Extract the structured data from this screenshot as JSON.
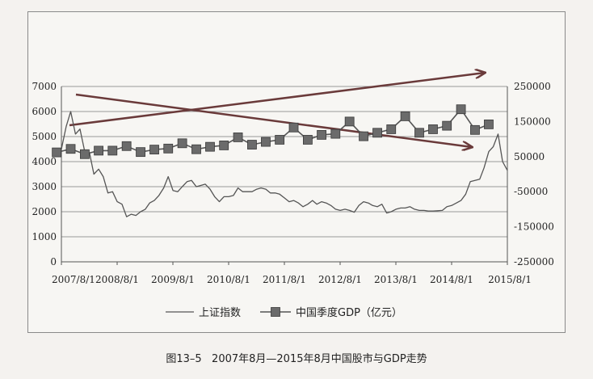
{
  "caption": {
    "number": "图13–5",
    "title": "2007年8月—2015年8月中国股市与GDP走势"
  },
  "chart_data": {
    "type": "line",
    "x_tick_labels": [
      "2007/8/1",
      "2008/8/1",
      "2009/8/1",
      "2010/8/1",
      "2011/8/1",
      "2012/8/1",
      "2013/8/1",
      "2014/8/1",
      "2015/8/1"
    ],
    "y_left": {
      "ticks": [
        "0",
        "1000",
        "2000",
        "3000",
        "4000",
        "5000",
        "6000",
        "7000"
      ],
      "range": [
        0,
        7000
      ]
    },
    "y_right": {
      "ticks": [
        "-250000",
        "-150000",
        "-50000",
        "50000",
        "150000",
        "250000"
      ],
      "range": [
        -250000,
        250000
      ]
    },
    "grid": true,
    "legend_position": "bottom",
    "series": [
      {
        "name": "上证指数",
        "axis": "left",
        "color": "#555555",
        "points": [
          [
            "2007-08-01",
            4500
          ],
          [
            "2007-09-01",
            5400
          ],
          [
            "2007-10-01",
            6000
          ],
          [
            "2007-11-01",
            5100
          ],
          [
            "2007-12-01",
            5300
          ],
          [
            "2008-01-01",
            4400
          ],
          [
            "2008-02-01",
            4350
          ],
          [
            "2008-03-01",
            3500
          ],
          [
            "2008-04-01",
            3700
          ],
          [
            "2008-05-01",
            3400
          ],
          [
            "2008-06-01",
            2750
          ],
          [
            "2008-07-01",
            2800
          ],
          [
            "2008-08-01",
            2400
          ],
          [
            "2008-09-01",
            2300
          ],
          [
            "2008-10-01",
            1800
          ],
          [
            "2008-11-01",
            1900
          ],
          [
            "2008-12-01",
            1850
          ],
          [
            "2009-01-01",
            2000
          ],
          [
            "2009-02-01",
            2100
          ],
          [
            "2009-03-01",
            2350
          ],
          [
            "2009-04-01",
            2450
          ],
          [
            "2009-05-01",
            2650
          ],
          [
            "2009-06-01",
            2950
          ],
          [
            "2009-07-01",
            3400
          ],
          [
            "2009-08-01",
            2850
          ],
          [
            "2009-09-01",
            2800
          ],
          [
            "2009-10-01",
            3000
          ],
          [
            "2009-11-01",
            3200
          ],
          [
            "2009-12-01",
            3250
          ],
          [
            "2010-01-01",
            3000
          ],
          [
            "2010-02-01",
            3050
          ],
          [
            "2010-03-01",
            3100
          ],
          [
            "2010-04-01",
            2900
          ],
          [
            "2010-05-01",
            2600
          ],
          [
            "2010-06-01",
            2400
          ],
          [
            "2010-07-01",
            2600
          ],
          [
            "2010-08-01",
            2600
          ],
          [
            "2010-09-01",
            2650
          ],
          [
            "2010-10-01",
            2950
          ],
          [
            "2010-11-01",
            2800
          ],
          [
            "2010-12-01",
            2800
          ],
          [
            "2011-01-01",
            2800
          ],
          [
            "2011-02-01",
            2900
          ],
          [
            "2011-03-01",
            2950
          ],
          [
            "2011-04-01",
            2900
          ],
          [
            "2011-05-01",
            2750
          ],
          [
            "2011-06-01",
            2750
          ],
          [
            "2011-07-01",
            2700
          ],
          [
            "2011-08-01",
            2550
          ],
          [
            "2011-09-01",
            2400
          ],
          [
            "2011-10-01",
            2450
          ],
          [
            "2011-11-01",
            2350
          ],
          [
            "2011-12-01",
            2200
          ],
          [
            "2012-01-01",
            2300
          ],
          [
            "2012-02-01",
            2450
          ],
          [
            "2012-03-01",
            2300
          ],
          [
            "2012-04-01",
            2400
          ],
          [
            "2012-05-01",
            2350
          ],
          [
            "2012-06-01",
            2250
          ],
          [
            "2012-07-01",
            2100
          ],
          [
            "2012-08-01",
            2050
          ],
          [
            "2012-09-01",
            2100
          ],
          [
            "2012-10-01",
            2050
          ],
          [
            "2012-11-01",
            1980
          ],
          [
            "2012-12-01",
            2250
          ],
          [
            "2013-01-01",
            2400
          ],
          [
            "2013-02-01",
            2350
          ],
          [
            "2013-03-01",
            2250
          ],
          [
            "2013-04-01",
            2200
          ],
          [
            "2013-05-01",
            2300
          ],
          [
            "2013-06-01",
            1950
          ],
          [
            "2013-07-01",
            2000
          ],
          [
            "2013-08-01",
            2100
          ],
          [
            "2013-09-01",
            2150
          ],
          [
            "2013-10-01",
            2150
          ],
          [
            "2013-11-01",
            2200
          ],
          [
            "2013-12-01",
            2100
          ],
          [
            "2014-01-01",
            2050
          ],
          [
            "2014-02-01",
            2050
          ],
          [
            "2014-03-01",
            2030
          ],
          [
            "2014-04-01",
            2030
          ],
          [
            "2014-05-01",
            2040
          ],
          [
            "2014-06-01",
            2050
          ],
          [
            "2014-07-01",
            2200
          ],
          [
            "2014-08-01",
            2250
          ],
          [
            "2014-09-01",
            2350
          ],
          [
            "2014-10-01",
            2450
          ],
          [
            "2014-11-01",
            2700
          ],
          [
            "2014-12-01",
            3200
          ],
          [
            "2015-01-01",
            3250
          ],
          [
            "2015-02-01",
            3300
          ],
          [
            "2015-03-01",
            3750
          ],
          [
            "2015-04-01",
            4400
          ],
          [
            "2015-05-01",
            4600
          ],
          [
            "2015-06-01",
            5100
          ],
          [
            "2015-07-01",
            4000
          ],
          [
            "2015-08-01",
            3650
          ]
        ]
      },
      {
        "name": "中国季度GDP（亿元）",
        "axis": "right",
        "color": "#555555",
        "marker": "square",
        "points": [
          [
            "2007-07-01",
            62000
          ],
          [
            "2007-10-01",
            72000
          ],
          [
            "2008-01-01",
            57000
          ],
          [
            "2008-04-01",
            67000
          ],
          [
            "2008-07-01",
            67000
          ],
          [
            "2008-10-01",
            80000
          ],
          [
            "2009-01-01",
            63000
          ],
          [
            "2009-04-01",
            70000
          ],
          [
            "2009-07-01",
            73000
          ],
          [
            "2009-10-01",
            88000
          ],
          [
            "2010-01-01",
            71000
          ],
          [
            "2010-04-01",
            78000
          ],
          [
            "2010-07-01",
            82000
          ],
          [
            "2010-10-01",
            105000
          ],
          [
            "2011-01-01",
            84000
          ],
          [
            "2011-04-01",
            92000
          ],
          [
            "2011-07-01",
            98000
          ],
          [
            "2011-10-01",
            133000
          ],
          [
            "2012-01-01",
            98000
          ],
          [
            "2012-04-01",
            112000
          ],
          [
            "2012-07-01",
            115000
          ],
          [
            "2012-10-01",
            150000
          ],
          [
            "2013-01-01",
            108000
          ],
          [
            "2013-04-01",
            118000
          ],
          [
            "2013-07-01",
            128000
          ],
          [
            "2013-10-01",
            165000
          ],
          [
            "2014-01-01",
            118000
          ],
          [
            "2014-04-01",
            128000
          ],
          [
            "2014-07-01",
            138000
          ],
          [
            "2014-10-01",
            185000
          ],
          [
            "2015-01-01",
            126000
          ],
          [
            "2015-04-01",
            142000
          ]
        ]
      }
    ]
  }
}
